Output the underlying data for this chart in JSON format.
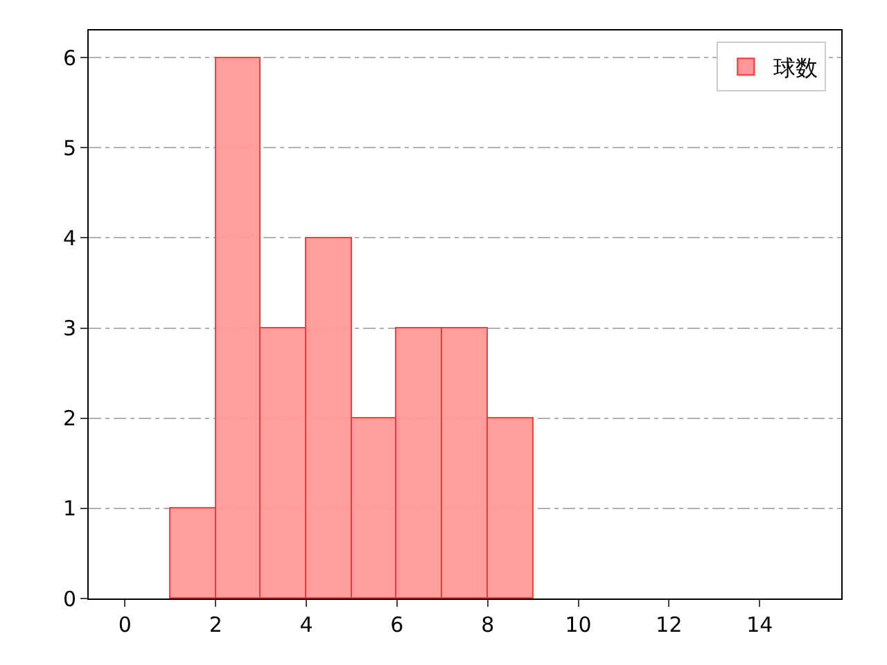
{
  "chart_data": {
    "type": "histogram",
    "bins": [
      1,
      2,
      3,
      4,
      5,
      6,
      7,
      8,
      9
    ],
    "series": [
      {
        "name": "球数",
        "color": "#ff9999",
        "values": [
          1,
          6,
          3,
          4,
          2,
          3,
          3,
          2
        ]
      }
    ],
    "xlim": [
      -0.8,
      15.8
    ],
    "xticks": [
      0,
      2,
      4,
      6,
      8,
      10,
      12,
      14
    ],
    "ylim": [
      0,
      6.3
    ],
    "yticks": [
      0,
      1,
      2,
      3,
      4,
      5,
      6
    ],
    "grid": "y",
    "legend": "top right"
  }
}
